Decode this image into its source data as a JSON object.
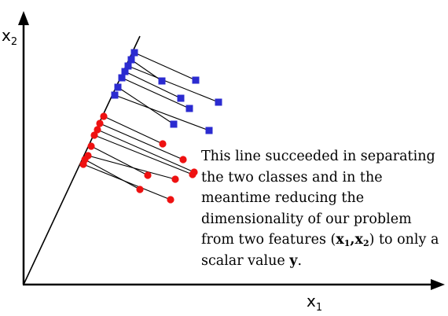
{
  "axes": {
    "y_label_main": "x",
    "y_label_sub": "2",
    "x_label_main": "x",
    "x_label_sub": "1"
  },
  "caption": {
    "part1": "This line succeeded in separating the two classes and in the meantime reducing the dimensionality of our problem from two features (",
    "f1": "x",
    "f1_sub": "1",
    "comma": ",",
    "f2": "x",
    "f2_sub": "2",
    "part2": ") to only a scalar value ",
    "y": "y",
    "end": "."
  },
  "colors": {
    "class_blue": "#2b2bd0",
    "class_red": "#ee1111",
    "line": "#000000"
  },
  "legend_markers": {
    "class_a": "blue-square-marker",
    "class_b": "red-circle-marker"
  }
}
